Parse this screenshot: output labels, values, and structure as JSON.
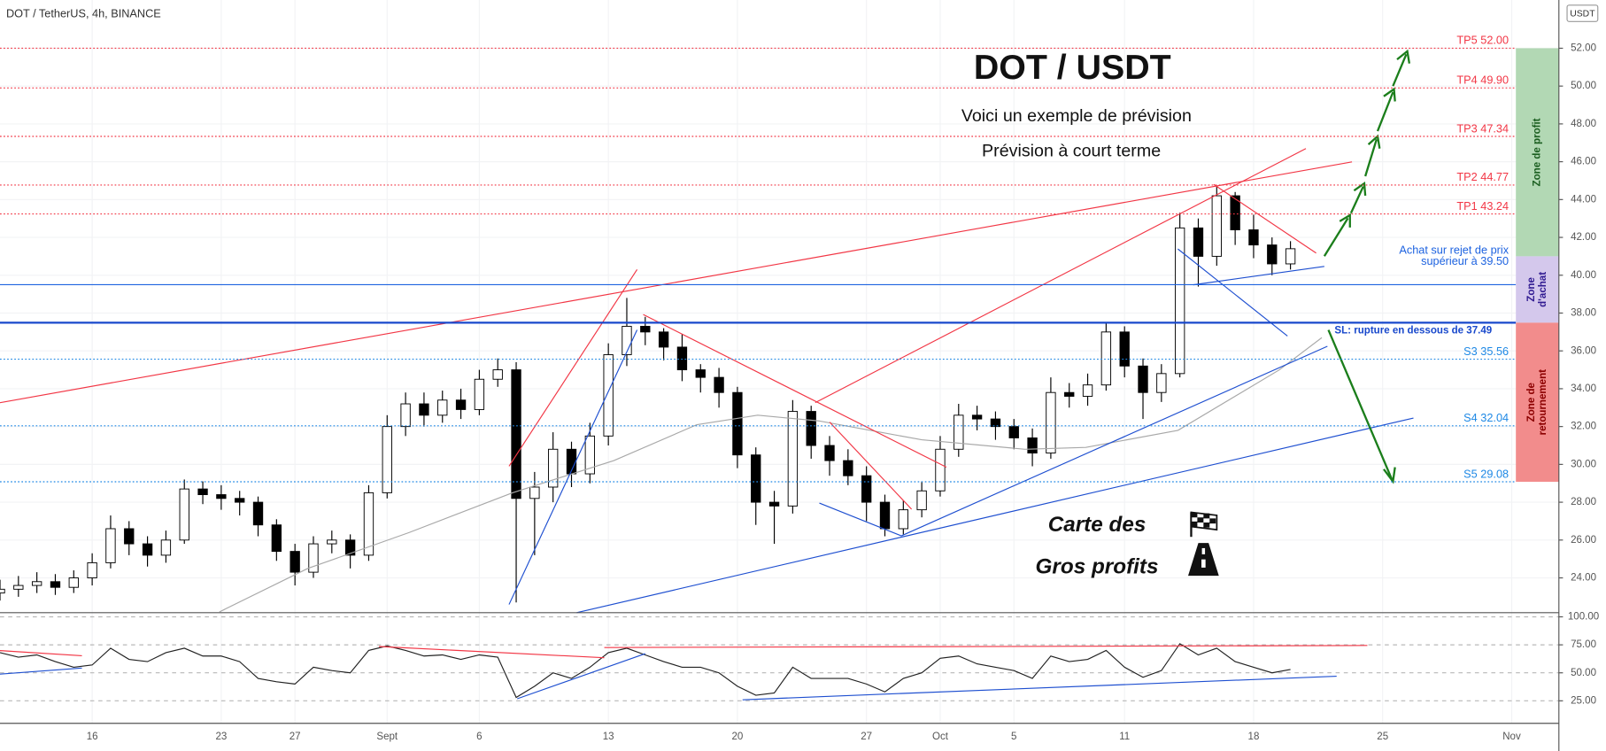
{
  "chart_data": [
    {
      "type": "candlestick",
      "title": "DOT / TetherUS, 4h, BINANCE",
      "currency": "USDT",
      "headline": "DOT / USDT",
      "subtitle_1": "Voici un exemple de prévision",
      "subtitle_2": "Prévision à court terme",
      "caption_1": "Carte des",
      "caption_2": "Gros profits",
      "up_color": "#ffffff",
      "down_color": "#000000",
      "wick_color": "#000000",
      "xlim": [
        -5,
        79.56
      ],
      "xticks": [
        {
          "value": 0,
          "label": "16"
        },
        {
          "value": 7,
          "label": "23"
        },
        {
          "value": 11,
          "label": "27"
        },
        {
          "value": 16,
          "label": "Sept"
        },
        {
          "value": 21,
          "label": "6"
        },
        {
          "value": 28,
          "label": "13"
        },
        {
          "value": 35,
          "label": "20"
        },
        {
          "value": 42,
          "label": "27"
        },
        {
          "value": 46,
          "label": "Oct"
        },
        {
          "value": 50,
          "label": "5"
        },
        {
          "value": 56,
          "label": "11"
        },
        {
          "value": 63,
          "label": "18"
        },
        {
          "value": 70,
          "label": "25"
        },
        {
          "value": 77,
          "label": "Nov"
        }
      ],
      "ylim": [
        22.16,
        54.55
      ],
      "yticks": [
        {
          "value": 24,
          "label": "24.00"
        },
        {
          "value": 26,
          "label": "26.00"
        },
        {
          "value": 28,
          "label": "28.00"
        },
        {
          "value": 30,
          "label": "30.00"
        },
        {
          "value": 32,
          "label": "32.00"
        },
        {
          "value": 34,
          "label": "34.00"
        },
        {
          "value": 36,
          "label": "36.00"
        },
        {
          "value": 38,
          "label": "38.00"
        },
        {
          "value": 40,
          "label": "40.00"
        },
        {
          "value": 42,
          "label": "42.00"
        },
        {
          "value": 44,
          "label": "44.00"
        },
        {
          "value": 46,
          "label": "46.00"
        },
        {
          "value": 48,
          "label": "48.00"
        },
        {
          "value": 50,
          "label": "50.00"
        },
        {
          "value": 52,
          "label": "52.00"
        }
      ],
      "grid": true,
      "x": [
        -5,
        -4,
        -3,
        -2,
        -1,
        0,
        1,
        2,
        3,
        4,
        5,
        6,
        7,
        8,
        9,
        10,
        11,
        12,
        13,
        14,
        15,
        16,
        17,
        18,
        19,
        20,
        21,
        22,
        23,
        24,
        25,
        26,
        27,
        28,
        29,
        30,
        31,
        32,
        33,
        34,
        35,
        36,
        37,
        38,
        39,
        40,
        41,
        42,
        43,
        44,
        45,
        46,
        47,
        48,
        49,
        50,
        51,
        52,
        53,
        54,
        55,
        56,
        57,
        58,
        59,
        60,
        61,
        62,
        63,
        64,
        65
      ],
      "open": [
        23.2,
        23.4,
        23.6,
        23.8,
        23.5,
        24.0,
        24.8,
        26.6,
        25.8,
        25.2,
        26.0,
        28.7,
        28.4,
        28.2,
        28.0,
        26.8,
        25.4,
        24.3,
        25.8,
        26.0,
        25.2,
        28.5,
        32.0,
        33.2,
        32.6,
        33.4,
        32.9,
        34.5,
        35.0,
        28.2,
        28.8,
        30.8,
        29.5,
        31.5,
        35.8,
        37.3,
        37.0,
        36.2,
        35.0,
        34.6,
        33.8,
        30.5,
        28.0,
        27.8,
        32.8,
        31.0,
        30.2,
        29.4,
        28.0,
        26.6,
        27.6,
        28.6,
        30.8,
        32.6,
        32.4,
        32.0,
        31.4,
        30.6,
        33.8,
        33.6,
        34.2,
        37.0,
        35.2,
        33.8,
        34.8,
        42.5,
        41.0,
        44.2,
        42.4,
        41.6,
        40.6
      ],
      "high": [
        23.9,
        24.1,
        24.3,
        24.2,
        24.4,
        25.3,
        27.3,
        27.0,
        26.2,
        26.5,
        29.2,
        29.1,
        28.9,
        28.6,
        28.3,
        27.1,
        25.8,
        26.2,
        26.5,
        26.3,
        28.9,
        32.6,
        33.8,
        33.8,
        33.9,
        34.0,
        35.0,
        35.6,
        35.4,
        29.6,
        31.7,
        31.2,
        32.2,
        36.4,
        38.8,
        37.8,
        37.2,
        36.9,
        35.3,
        35.1,
        34.1,
        30.9,
        28.6,
        33.4,
        33.1,
        31.5,
        30.8,
        29.9,
        28.4,
        28.1,
        29.1,
        31.5,
        33.2,
        33.1,
        32.8,
        32.4,
        31.9,
        34.6,
        34.3,
        34.8,
        37.5,
        37.3,
        35.6,
        35.3,
        43.3,
        43.0,
        44.7,
        44.4,
        43.2,
        42.0,
        41.8
      ],
      "low": [
        22.8,
        23.0,
        23.2,
        23.1,
        23.2,
        23.6,
        24.5,
        25.2,
        24.6,
        24.8,
        25.8,
        27.9,
        27.6,
        27.3,
        26.2,
        24.9,
        23.6,
        24.0,
        25.3,
        24.5,
        24.9,
        28.2,
        31.5,
        32.0,
        32.2,
        32.4,
        32.6,
        34.1,
        22.7,
        25.2,
        28.0,
        28.8,
        29.0,
        31.0,
        35.2,
        36.3,
        35.5,
        34.4,
        33.8,
        33.0,
        29.8,
        26.8,
        25.8,
        27.4,
        30.3,
        29.4,
        28.9,
        27.0,
        26.2,
        26.3,
        27.2,
        28.3,
        30.4,
        31.8,
        31.3,
        30.8,
        29.9,
        30.3,
        33.0,
        33.1,
        33.9,
        34.6,
        32.4,
        33.3,
        34.6,
        39.4,
        40.5,
        41.6,
        40.9,
        40.0,
        40.3
      ],
      "close": [
        23.4,
        23.6,
        23.8,
        23.5,
        24.0,
        24.8,
        26.6,
        25.8,
        25.2,
        26.0,
        28.7,
        28.4,
        28.2,
        28.0,
        26.8,
        25.4,
        24.3,
        25.8,
        26.0,
        25.2,
        28.5,
        32.0,
        33.2,
        32.6,
        33.4,
        32.9,
        34.5,
        35.0,
        28.2,
        28.8,
        30.8,
        29.5,
        31.5,
        35.8,
        37.3,
        37.0,
        36.2,
        35.0,
        34.6,
        33.8,
        30.5,
        28.0,
        27.8,
        32.8,
        31.0,
        30.2,
        29.4,
        28.0,
        26.6,
        27.6,
        28.6,
        30.8,
        32.6,
        32.4,
        32.0,
        31.4,
        30.6,
        33.8,
        33.6,
        34.2,
        37.0,
        35.2,
        33.8,
        34.8,
        42.5,
        41.0,
        44.2,
        42.4,
        41.6,
        40.6,
        41.4
      ],
      "ma": {
        "color": "#a8a8a8",
        "x": [
          6.9,
          11.7,
          17.2,
          22.8,
          28.3,
          32.8,
          36.1,
          39.4,
          45,
          50.6,
          53.9,
          58.9,
          64.4,
          66.7
        ],
        "values": [
          22.2,
          24.5,
          26.4,
          28.5,
          30.2,
          32.1,
          32.6,
          32.3,
          31.3,
          30.8,
          30.9,
          31.8,
          35.0,
          36.7
        ]
      },
      "levels": [
        {
          "label": "TP5 52.00",
          "value": 52.0,
          "color": "#f23645",
          "style": "dotted"
        },
        {
          "label": "TP4 49.90",
          "value": 49.9,
          "color": "#f23645",
          "style": "dotted"
        },
        {
          "label": "TP3 47.34",
          "value": 47.34,
          "color": "#f23645",
          "style": "dotted"
        },
        {
          "label": "TP2 44.77",
          "value": 44.77,
          "color": "#f23645",
          "style": "dotted"
        },
        {
          "label": "TP1 43.24",
          "value": 43.24,
          "color": "#f23645",
          "style": "dotted"
        },
        {
          "label": [
            "Achat sur rejet de prix",
            "supérieur à 39.50"
          ],
          "value": 39.5,
          "color": "#1e63e0",
          "style": "solid"
        },
        {
          "label": "SL: rupture en dessous de 37.49",
          "value": 37.49,
          "color": "#1848cc",
          "style": "thick"
        },
        {
          "label": "S3 35.56",
          "value": 35.56,
          "color": "#1e88e5",
          "style": "dotted"
        },
        {
          "label": "S4 32.04",
          "value": 32.04,
          "color": "#1e88e5",
          "style": "dotted"
        },
        {
          "label": "S5 29.08",
          "value": 29.08,
          "color": "#1e88e5",
          "style": "dotted"
        }
      ],
      "zones": [
        {
          "label": [
            "Zone de profit"
          ],
          "from": 52.0,
          "to": 41.0,
          "color": "#b2d8b4",
          "text_color": "#1b5e20"
        },
        {
          "label": [
            "Zone",
            "d'achat"
          ],
          "from": 41.0,
          "to": 37.49,
          "color": "#d4c8ec",
          "text_color": "#311b92"
        },
        {
          "label": [
            "Zone de",
            "retournement"
          ],
          "from": 37.49,
          "to": 29.08,
          "color": "#f28c8c",
          "text_color": "#8b0000"
        }
      ]
    },
    {
      "type": "line",
      "color": "#222222",
      "xlim": [
        -5,
        79.56
      ],
      "ylim": [
        4.9,
        103.7
      ],
      "yticks": [
        {
          "value": 25,
          "label": "25.00"
        },
        {
          "value": 50,
          "label": "50.00"
        },
        {
          "value": 75,
          "label": "75.00"
        },
        {
          "value": 100,
          "label": "100.00"
        }
      ],
      "x": [
        -5,
        -4,
        -3,
        -2,
        -1,
        0,
        1,
        2,
        3,
        4,
        5,
        6,
        7,
        8,
        9,
        10,
        11,
        12,
        13,
        14,
        15,
        16,
        17,
        18,
        19,
        20,
        21,
        22,
        23,
        24,
        25,
        26,
        27,
        28,
        29,
        30,
        31,
        32,
        33,
        34,
        35,
        36,
        37,
        38,
        39,
        40,
        41,
        42,
        43,
        44,
        45,
        46,
        47,
        48,
        49,
        50,
        51,
        52,
        53,
        54,
        55,
        56,
        57,
        58,
        59,
        60,
        61,
        62,
        63,
        64,
        65
      ],
      "values": [
        68,
        64,
        66,
        60,
        55,
        57,
        72,
        62,
        60,
        68,
        72,
        65,
        65,
        60,
        45,
        42,
        40,
        55,
        52,
        50,
        70,
        74,
        70,
        65,
        66,
        62,
        66,
        64,
        28,
        38,
        50,
        45,
        55,
        68,
        72,
        66,
        60,
        55,
        55,
        50,
        38,
        30,
        32,
        55,
        45,
        45,
        45,
        40,
        33,
        45,
        50,
        63,
        65,
        58,
        55,
        52,
        45,
        65,
        60,
        62,
        70,
        55,
        46,
        52,
        76,
        66,
        72,
        60,
        55,
        50,
        53
      ]
    }
  ]
}
